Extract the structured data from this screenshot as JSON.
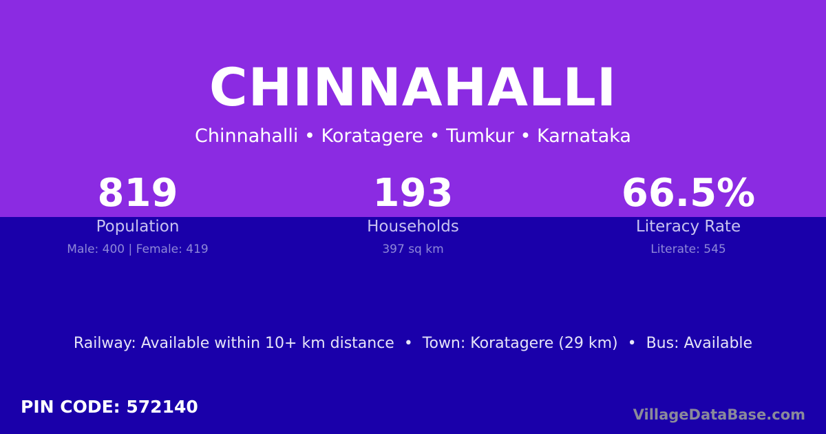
{
  "title": "CHINNAHALLI",
  "breadcrumb": "Chinnahalli • Koratagere • Tumkur • Karnataka",
  "stats": [
    {
      "value": "819",
      "label": "Population",
      "detail": "Male: 400 | Female: 419"
    },
    {
      "value": "193",
      "label": "Households",
      "detail": "397 sq km"
    },
    {
      "value": "66.5%",
      "label": "Literacy Rate",
      "detail": "Literate: 545"
    }
  ],
  "connectivity": "Railway: Available within 10+ km distance  •  Town: Koratagere (29 km)  •  Bus: Available",
  "pin_code": "PIN CODE: 572140",
  "brand": "VillageDataBase.com",
  "colors": {
    "top": "#8b2be2",
    "bottom": "#1a00aa"
  }
}
